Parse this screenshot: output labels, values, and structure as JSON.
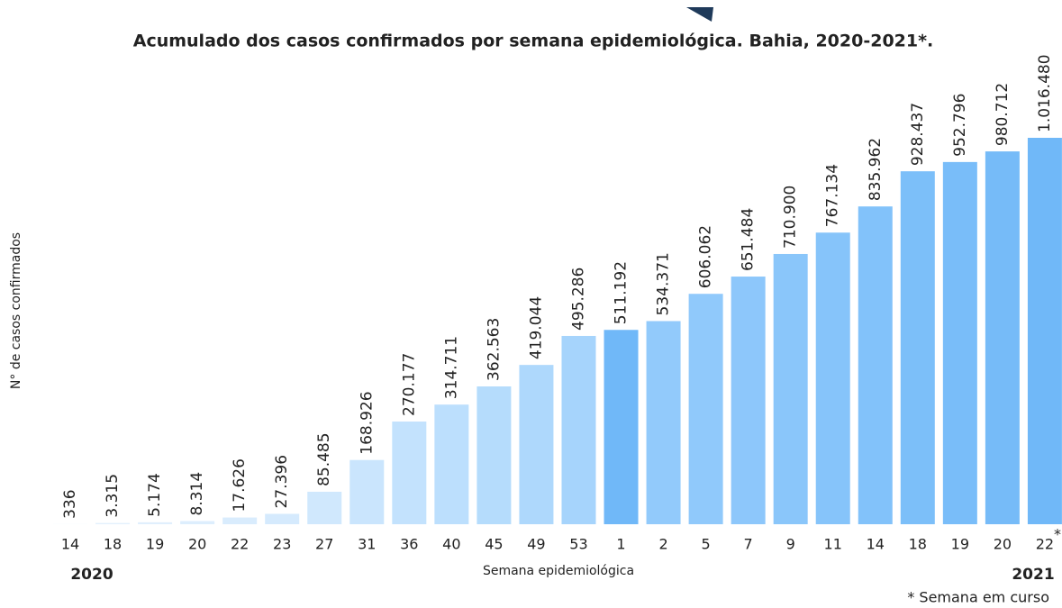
{
  "chart_data": {
    "type": "bar",
    "title": "Acumulado dos casos confirmados por semana epidemiológica. Bahia, 2020-2021*.",
    "y_label": "N° de casos confirmados",
    "x_label": "Semana epidemiológica",
    "year_labels": [
      "2020",
      "2021"
    ],
    "annotation_mark": "*",
    "footnote": "* Semana em curso",
    "categories": [
      "14",
      "18",
      "19",
      "20",
      "22",
      "23",
      "27",
      "31",
      "36",
      "40",
      "45",
      "49",
      "53",
      "1",
      "2",
      "5",
      "7",
      "9",
      "11",
      "14",
      "18",
      "19",
      "20",
      "22"
    ],
    "values": [
      336,
      3315,
      5174,
      8314,
      17626,
      27396,
      85485,
      168926,
      270177,
      314711,
      362563,
      419044,
      495286,
      511192,
      534371,
      606062,
      651484,
      710900,
      767134,
      835962,
      928437,
      952796,
      980712,
      1016480
    ],
    "value_labels": [
      "336",
      "3.315",
      "5.174",
      "8.314",
      "17.626",
      "27.396",
      "85.485",
      "168.926",
      "270.177",
      "314.711",
      "362.563",
      "419.044",
      "495.286",
      "511.192",
      "534.371",
      "606.062",
      "651.484",
      "710.900",
      "767.134",
      "835.962",
      "928.437",
      "952.796",
      "980.712",
      "1.016.480"
    ],
    "colors": [
      "#e6f2fd",
      "#e3f1fd",
      "#e0effd",
      "#ddeefd",
      "#d9ecfd",
      "#d5eafd",
      "#d0e8fd",
      "#cae5fd",
      "#c3e2fd",
      "#bcdffd",
      "#b5dcfc",
      "#aed8fc",
      "#a6d4fc",
      "#70b8f8",
      "#92cafb",
      "#90c9fb",
      "#8dc7fb",
      "#8ac6fa",
      "#86c4fa",
      "#82c2fa",
      "#7cbff9",
      "#79bdf9",
      "#76bbf8",
      "#70b8f8"
    ]
  }
}
